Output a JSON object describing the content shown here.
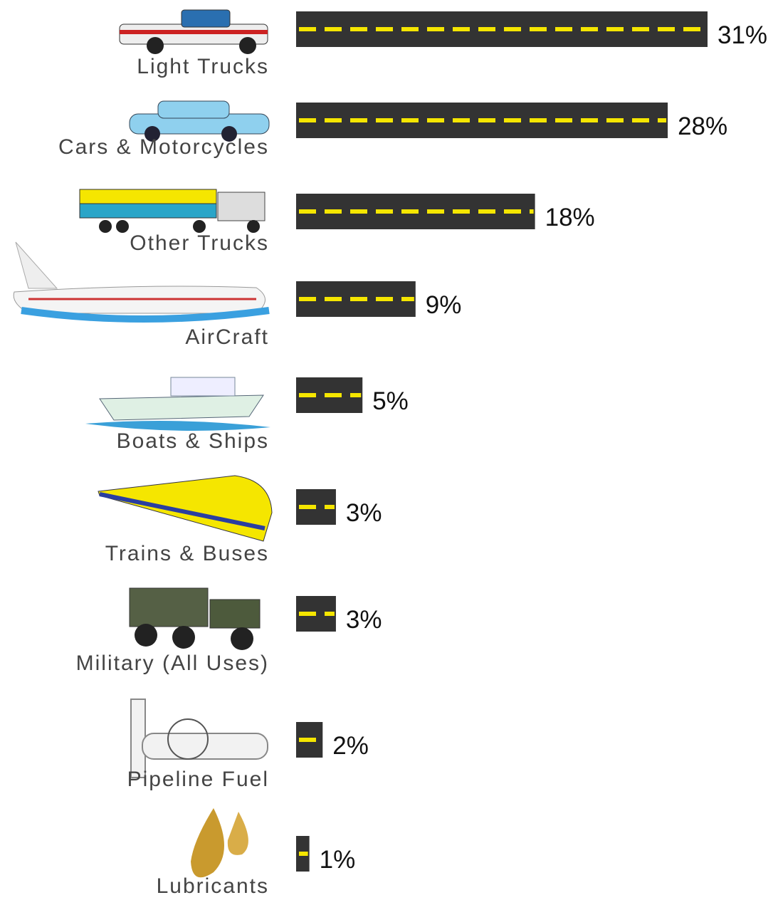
{
  "chart_data": {
    "type": "bar",
    "orientation": "horizontal",
    "categories": [
      "Light Trucks",
      "Cars & Motorcycles",
      "Other Trucks",
      "AirCraft",
      "Boats & Ships",
      "Trains & Buses",
      "Military (All Uses)",
      "Pipeline Fuel",
      "Lubricants"
    ],
    "values": [
      31,
      28,
      18,
      9,
      5,
      3,
      3,
      2,
      1
    ],
    "value_labels": [
      "31%",
      "28%",
      "18%",
      "9%",
      "5%",
      "3%",
      "3%",
      "2%",
      "1%"
    ],
    "color": "#333333",
    "lane_color": "#f5e600"
  }
}
